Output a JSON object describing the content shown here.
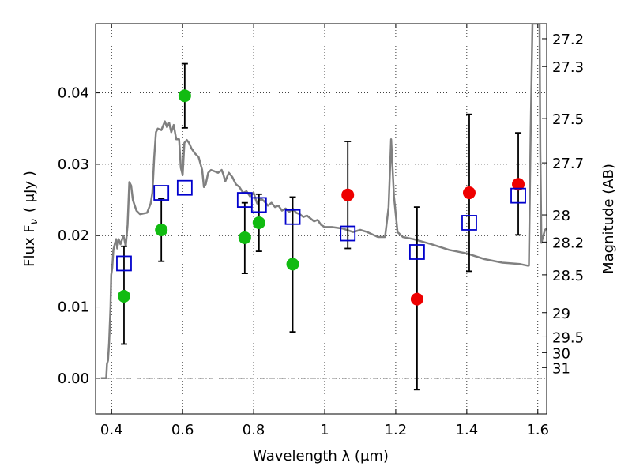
{
  "chart_data": {
    "type": "scatter",
    "xlabel": "Wavelength  λ (μm)",
    "ylabel": "Flux  F",
    "ylabel_sub": "ν",
    "ylabel_unit": "( μJy )",
    "y2label": "Magnitude (AB)",
    "xlim": [
      0.355,
      1.625
    ],
    "ylim": [
      -0.005,
      0.0497
    ],
    "grid": true,
    "x_ticks": [
      0.4,
      0.6,
      0.8,
      1.0,
      1.2,
      1.4,
      1.6
    ],
    "x_tick_labels": [
      "0.4",
      "0.6",
      "0.8",
      "1",
      "1.2",
      "1.4",
      "1.6"
    ],
    "y_ticks": [
      0.0,
      0.01,
      0.02,
      0.03,
      0.04
    ],
    "y_tick_labels": [
      "0.00",
      "0.01",
      "0.02",
      "0.03",
      "0.04"
    ],
    "y2_ticks": [
      {
        "label": "27.2",
        "flux": 0.0476
      },
      {
        "label": "27.3",
        "flux": 0.0437
      },
      {
        "label": "27.5",
        "flux": 0.0364
      },
      {
        "label": "27.7",
        "flux": 0.0302
      },
      {
        "label": "28",
        "flux": 0.0229
      },
      {
        "label": "28.2",
        "flux": 0.0191
      },
      {
        "label": "28.5",
        "flux": 0.0145
      },
      {
        "label": "29",
        "flux": 0.0092
      },
      {
        "label": "29.5",
        "flux": 0.0058
      },
      {
        "label": "30",
        "flux": 0.0036
      },
      {
        "label": "31",
        "flux": 0.0015
      }
    ],
    "colors": {
      "template": "#808080",
      "green": "#11bb11",
      "red": "#ee0000",
      "model_box": "#0000cc",
      "error": "#000000"
    },
    "template_sed": [
      [
        0.37,
        0.0
      ],
      [
        0.385,
        0.0
      ],
      [
        0.387,
        0.002
      ],
      [
        0.39,
        0.0025
      ],
      [
        0.393,
        0.005
      ],
      [
        0.397,
        0.01
      ],
      [
        0.399,
        0.0145
      ],
      [
        0.402,
        0.0155
      ],
      [
        0.405,
        0.018
      ],
      [
        0.41,
        0.019
      ],
      [
        0.413,
        0.0195
      ],
      [
        0.416,
        0.0182
      ],
      [
        0.42,
        0.0195
      ],
      [
        0.425,
        0.0188
      ],
      [
        0.43,
        0.0195
      ],
      [
        0.433,
        0.02
      ],
      [
        0.436,
        0.0195
      ],
      [
        0.44,
        0.0185
      ],
      [
        0.445,
        0.0215
      ],
      [
        0.45,
        0.0275
      ],
      [
        0.455,
        0.027
      ],
      [
        0.46,
        0.025
      ],
      [
        0.47,
        0.0235
      ],
      [
        0.48,
        0.023
      ],
      [
        0.5,
        0.0232
      ],
      [
        0.51,
        0.0245
      ],
      [
        0.515,
        0.026
      ],
      [
        0.52,
        0.031
      ],
      [
        0.525,
        0.0345
      ],
      [
        0.53,
        0.035
      ],
      [
        0.54,
        0.0348
      ],
      [
        0.55,
        0.036
      ],
      [
        0.556,
        0.0352
      ],
      [
        0.562,
        0.0358
      ],
      [
        0.568,
        0.0345
      ],
      [
        0.575,
        0.0355
      ],
      [
        0.582,
        0.0335
      ],
      [
        0.59,
        0.0335
      ],
      [
        0.595,
        0.0295
      ],
      [
        0.6,
        0.0285
      ],
      [
        0.605,
        0.033
      ],
      [
        0.612,
        0.0334
      ],
      [
        0.618,
        0.033
      ],
      [
        0.625,
        0.0322
      ],
      [
        0.635,
        0.0315
      ],
      [
        0.645,
        0.031
      ],
      [
        0.655,
        0.0292
      ],
      [
        0.66,
        0.0268
      ],
      [
        0.665,
        0.0272
      ],
      [
        0.672,
        0.0288
      ],
      [
        0.68,
        0.0292
      ],
      [
        0.69,
        0.029
      ],
      [
        0.7,
        0.0288
      ],
      [
        0.71,
        0.0292
      ],
      [
        0.715,
        0.0285
      ],
      [
        0.72,
        0.0276
      ],
      [
        0.73,
        0.0288
      ],
      [
        0.74,
        0.0282
      ],
      [
        0.75,
        0.0272
      ],
      [
        0.76,
        0.0268
      ],
      [
        0.77,
        0.026
      ],
      [
        0.78,
        0.0262
      ],
      [
        0.79,
        0.0255
      ],
      [
        0.8,
        0.026
      ],
      [
        0.805,
        0.0252
      ],
      [
        0.81,
        0.0245
      ],
      [
        0.82,
        0.0252
      ],
      [
        0.83,
        0.0248
      ],
      [
        0.84,
        0.0242
      ],
      [
        0.85,
        0.0246
      ],
      [
        0.86,
        0.024
      ],
      [
        0.87,
        0.0242
      ],
      [
        0.88,
        0.0235
      ],
      [
        0.89,
        0.0238
      ],
      [
        0.9,
        0.0233
      ],
      [
        0.91,
        0.0238
      ],
      [
        0.92,
        0.0232
      ],
      [
        0.93,
        0.023
      ],
      [
        0.94,
        0.0226
      ],
      [
        0.95,
        0.0228
      ],
      [
        0.96,
        0.0224
      ],
      [
        0.97,
        0.022
      ],
      [
        0.98,
        0.0222
      ],
      [
        0.99,
        0.0215
      ],
      [
        1.0,
        0.0212
      ],
      [
        1.02,
        0.0212
      ],
      [
        1.05,
        0.021
      ],
      [
        1.08,
        0.0205
      ],
      [
        1.1,
        0.0208
      ],
      [
        1.12,
        0.0205
      ],
      [
        1.15,
        0.0198
      ],
      [
        1.17,
        0.0198
      ],
      [
        1.18,
        0.024
      ],
      [
        1.187,
        0.0335
      ],
      [
        1.195,
        0.0255
      ],
      [
        1.205,
        0.0205
      ],
      [
        1.22,
        0.0198
      ],
      [
        1.25,
        0.0195
      ],
      [
        1.3,
        0.0188
      ],
      [
        1.35,
        0.018
      ],
      [
        1.4,
        0.0175
      ],
      [
        1.45,
        0.0167
      ],
      [
        1.5,
        0.0162
      ],
      [
        1.55,
        0.016
      ],
      [
        1.57,
        0.0158
      ],
      [
        1.575,
        0.0158
      ],
      [
        1.58,
        0.035
      ],
      [
        1.585,
        0.0497
      ],
      [
        1.605,
        0.0497
      ],
      [
        1.607,
        0.032
      ],
      [
        1.61,
        0.019
      ],
      [
        1.62,
        0.0208
      ],
      [
        1.625,
        0.021
      ]
    ],
    "observed": [
      {
        "x": 0.435,
        "y": 0.0115,
        "err_low": 0.0048,
        "err_high": 0.0185,
        "color": "green"
      },
      {
        "x": 0.54,
        "y": 0.0208,
        "err_low": 0.0164,
        "err_high": 0.0252,
        "color": "green"
      },
      {
        "x": 0.606,
        "y": 0.0396,
        "err_low": 0.0351,
        "err_high": 0.0441,
        "color": "green"
      },
      {
        "x": 0.775,
        "y": 0.0197,
        "err_low": 0.0147,
        "err_high": 0.0246,
        "color": "green"
      },
      {
        "x": 0.815,
        "y": 0.0218,
        "err_low": 0.0178,
        "err_high": 0.0258,
        "color": "green"
      },
      {
        "x": 0.91,
        "y": 0.016,
        "err_low": 0.0065,
        "err_high": 0.0254,
        "color": "green"
      },
      {
        "x": 1.065,
        "y": 0.0257,
        "err_low": 0.0182,
        "err_high": 0.0332,
        "color": "red"
      },
      {
        "x": 1.26,
        "y": 0.0111,
        "err_low": -0.0016,
        "err_high": 0.024,
        "color": "red"
      },
      {
        "x": 1.407,
        "y": 0.026,
        "err_low": 0.015,
        "err_high": 0.037,
        "color": "red"
      },
      {
        "x": 1.545,
        "y": 0.0272,
        "err_low": 0.0201,
        "err_high": 0.0344,
        "color": "red"
      }
    ],
    "model": [
      {
        "x": 0.435,
        "y": 0.0161
      },
      {
        "x": 0.54,
        "y": 0.026
      },
      {
        "x": 0.606,
        "y": 0.0267
      },
      {
        "x": 0.775,
        "y": 0.025
      },
      {
        "x": 0.815,
        "y": 0.0243
      },
      {
        "x": 0.91,
        "y": 0.0226
      },
      {
        "x": 1.065,
        "y": 0.0203
      },
      {
        "x": 1.26,
        "y": 0.0177
      },
      {
        "x": 1.407,
        "y": 0.0218
      },
      {
        "x": 1.545,
        "y": 0.0256
      }
    ]
  }
}
